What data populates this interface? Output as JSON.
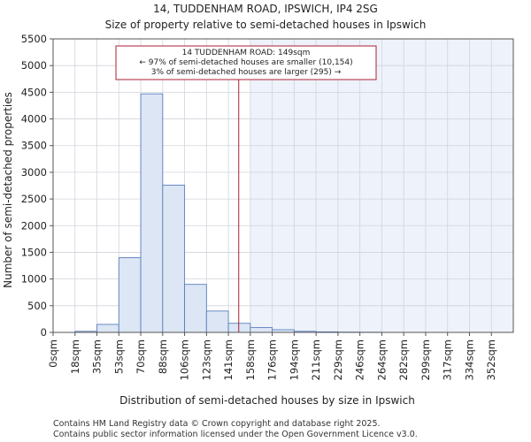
{
  "chart_data": {
    "type": "bar",
    "title": "14, TUDDENHAM ROAD, IPSWICH, IP4 2SG",
    "subtitle": "Size of property relative to semi-detached houses in Ipswich",
    "xlabel": "Distribution of semi-detached houses by size in Ipswich",
    "ylabel": "Number of semi-detached properties",
    "categories": [
      "0sqm",
      "18sqm",
      "35sqm",
      "53sqm",
      "70sqm",
      "88sqm",
      "106sqm",
      "123sqm",
      "141sqm",
      "158sqm",
      "176sqm",
      "194sqm",
      "211sqm",
      "229sqm",
      "246sqm",
      "264sqm",
      "282sqm",
      "299sqm",
      "317sqm",
      "334sqm",
      "352sqm"
    ],
    "bin_edges": [
      0,
      18,
      35,
      53,
      70,
      88,
      106,
      123,
      141,
      158,
      176,
      194,
      211,
      229,
      246,
      264,
      282,
      299,
      317,
      334,
      352,
      370
    ],
    "values": [
      0,
      20,
      150,
      1400,
      4470,
      2760,
      900,
      400,
      170,
      90,
      50,
      20,
      10,
      5,
      3,
      0,
      0,
      0,
      0,
      0,
      0
    ],
    "ylim": [
      0,
      5500
    ],
    "yticks": [
      0,
      500,
      1000,
      1500,
      2000,
      2500,
      3000,
      3500,
      4000,
      4500,
      5000,
      5500
    ],
    "grid": true,
    "property_size": 149,
    "annotation": {
      "line1": "14 TUDDENHAM ROAD: 149sqm",
      "line2": "← 97% of semi-detached houses are smaller (10,154)",
      "line3": "3% of semi-detached houses are larger (295) →"
    },
    "colors": {
      "bar_fill": "#dce6f4",
      "bar_edge": "#5b7fbf",
      "marker": "#aa2233",
      "shade": "#eef2fb",
      "grid": "#d0d4dc"
    }
  },
  "footer": {
    "line1": "Contains HM Land Registry data © Crown copyright and database right 2025.",
    "line2": "Contains public sector information licensed under the Open Government Licence v3.0."
  }
}
